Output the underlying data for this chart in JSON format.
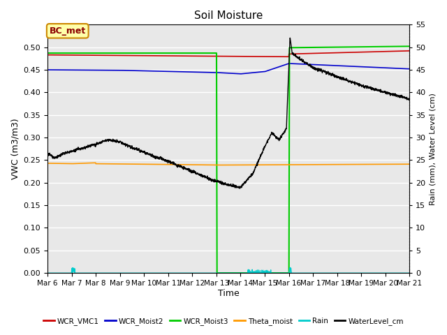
{
  "title": "Soil Moisture",
  "xlabel": "Time",
  "ylabel_left": "VWC (m3/m3)",
  "ylabel_right": "Rain (mm), Water Level (cm)",
  "annotation_text": "BC_met",
  "ylim_left": [
    0.0,
    0.55
  ],
  "ylim_right": [
    0.0,
    55
  ],
  "yticks_left": [
    0.0,
    0.05,
    0.1,
    0.15,
    0.2,
    0.25,
    0.3,
    0.35,
    0.4,
    0.45,
    0.5
  ],
  "yticks_right": [
    0,
    5,
    10,
    15,
    20,
    25,
    30,
    35,
    40,
    45,
    50,
    55
  ],
  "background_color": "#e8e8e8",
  "series_colors": {
    "WCR_VMC1": "#cc0000",
    "WCR_Moist2": "#0000cc",
    "WCR_Moist3": "#00cc00",
    "Theta_moist": "#ff9900",
    "Rain": "#00cccc",
    "WaterLevel_cm": "#000000"
  },
  "xtick_labels": [
    "Mar 6",
    "Mar 7",
    "Mar 8",
    "Mar 9",
    "Mar 10",
    "Mar 11",
    "Mar 12",
    "Mar 13",
    "Mar 14",
    "Mar 15",
    "Mar 16",
    "Mar 17",
    "Mar 18",
    "Mar 19",
    "Mar 20",
    "Mar 21"
  ],
  "figsize": [
    6.4,
    4.8
  ],
  "dpi": 100
}
